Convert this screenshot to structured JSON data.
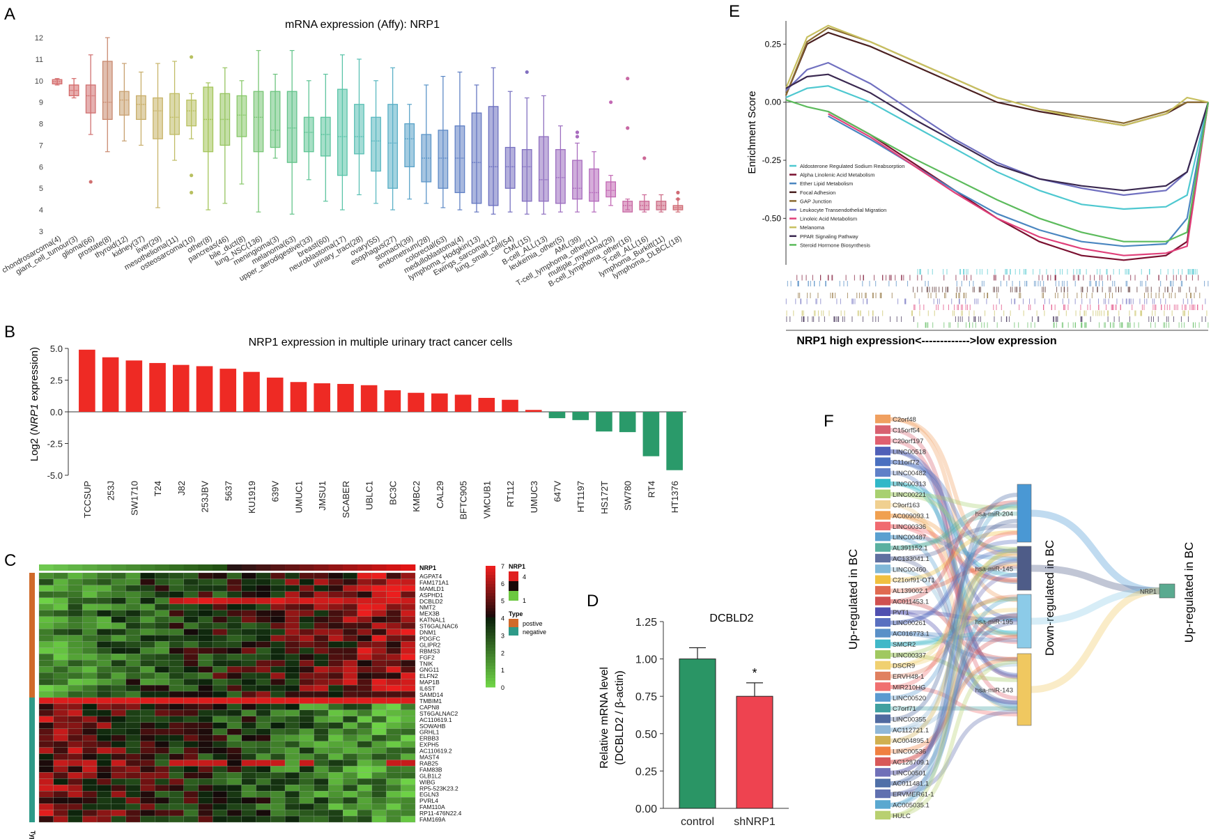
{
  "panel_letters": [
    "A",
    "B",
    "C",
    "D",
    "E",
    "F"
  ],
  "chart_data": [
    {
      "id": "A",
      "type": "box",
      "title": "mRNA expression (Affy): NRP1",
      "ylim": [
        3,
        12
      ],
      "yticks": [
        3,
        4,
        5,
        6,
        7,
        8,
        9,
        10,
        11,
        12
      ],
      "categories": [
        "chondrosarcoma(4)",
        "giant_cell_tumour(3)",
        "glioma(66)",
        "prostate(8)",
        "thyroid(12)",
        "kidney(37)",
        "liver(29)",
        "mesothelioma(11)",
        "osteosarcoma(10)",
        "other(8)",
        "pancreas(46)",
        "bile_duct(8)",
        "lung_NSC(136)",
        "meningioma(3)",
        "melanoma(63)",
        "upper_aerodigestive(33)",
        "breast(60)",
        "neuroblastoma(17)",
        "urinary_tract(28)",
        "ovary(55)",
        "esophagus(27)",
        "stomach(39)",
        "endometrium(28)",
        "colorectal(63)",
        "medulloblastoma(4)",
        "lymphoma_Hodgkin(13)",
        "Ewings_sarcoma(12)",
        "lung_small_cell(54)",
        "CML(15)",
        "B-cell_ALL(13)",
        "leukemia_other(5)",
        "AML(39)",
        "T-cell_lymphoma_other(11)",
        "multiple_myeloma(29)",
        "B-cell_lymphoma_other(16)",
        "T-cell_ALL(16)",
        "lymphoma_Burkitt(11)",
        "lymphoma_DLBCL(18)"
      ],
      "boxes": [
        [
          9.8,
          9.85,
          9.95,
          10.05,
          10.1
        ],
        [
          9.2,
          9.3,
          9.55,
          9.8,
          10.1
        ],
        [
          7.5,
          8.5,
          9.3,
          9.8,
          11.2
        ],
        [
          6.7,
          8.2,
          9.0,
          10.9,
          12.0
        ],
        [
          7.2,
          8.4,
          9.1,
          9.5,
          10.8
        ],
        [
          7.0,
          8.2,
          8.9,
          9.3,
          10.4
        ],
        [
          4.1,
          7.3,
          8.6,
          9.2,
          10.8
        ],
        [
          6.3,
          7.5,
          8.3,
          9.4,
          10.9
        ],
        [
          7.3,
          7.9,
          8.6,
          9.1,
          9.4
        ],
        [
          4.0,
          6.7,
          8.2,
          9.7,
          9.9
        ],
        [
          4.3,
          7.0,
          8.2,
          9.4,
          10.6
        ],
        [
          5.2,
          7.4,
          8.4,
          9.3,
          10.0
        ],
        [
          3.9,
          6.7,
          8.3,
          9.5,
          11.4
        ],
        [
          6.4,
          6.9,
          7.7,
          9.5,
          10.3
        ],
        [
          3.8,
          6.2,
          7.8,
          9.5,
          11.4
        ],
        [
          5.4,
          6.7,
          7.6,
          8.3,
          10.0
        ],
        [
          4.4,
          6.5,
          7.5,
          8.3,
          10.3
        ],
        [
          4.0,
          5.6,
          7.4,
          9.6,
          11.2
        ],
        [
          4.7,
          6.6,
          7.4,
          8.9,
          11.0
        ],
        [
          4.3,
          5.8,
          7.2,
          8.3,
          10.0
        ],
        [
          4.0,
          5.0,
          7.1,
          8.9,
          10.6
        ],
        [
          4.5,
          6.0,
          7.3,
          8.0,
          8.9
        ],
        [
          4.3,
          5.3,
          6.4,
          7.5,
          9.8
        ],
        [
          4.1,
          5.0,
          6.4,
          7.7,
          10.2
        ],
        [
          4.0,
          4.8,
          6.4,
          7.9,
          10.4
        ],
        [
          3.9,
          4.3,
          6.2,
          8.5,
          9.8
        ],
        [
          3.8,
          4.2,
          6.0,
          8.8,
          10.6
        ],
        [
          3.9,
          5.0,
          6.0,
          6.9,
          9.5
        ],
        [
          3.8,
          4.4,
          6.0,
          6.8,
          9.2
        ],
        [
          3.8,
          4.4,
          5.4,
          7.4,
          9.3
        ],
        [
          3.9,
          4.3,
          5.5,
          6.8,
          7.9
        ],
        [
          3.9,
          4.5,
          5.0,
          6.3,
          7.1
        ],
        [
          3.9,
          4.4,
          4.8,
          5.9,
          6.7
        ],
        [
          4.2,
          4.6,
          4.9,
          5.3,
          5.6
        ],
        [
          4.0,
          3.9,
          4.2,
          4.4,
          4.5
        ],
        [
          3.9,
          4.0,
          4.2,
          4.4,
          4.7
        ],
        [
          3.9,
          4.0,
          4.2,
          4.4,
          4.7
        ],
        [
          3.9,
          4.0,
          4.1,
          4.2,
          4.5
        ]
      ],
      "outliers": [
        [
          2,
          5.3
        ],
        [
          8,
          11.1
        ],
        [
          8,
          5.6
        ],
        [
          8,
          4.8
        ],
        [
          28,
          10.4
        ],
        [
          31,
          7.6
        ],
        [
          31,
          7.4
        ],
        [
          33,
          9.0
        ],
        [
          34,
          10.1
        ],
        [
          34,
          7.8
        ],
        [
          35,
          6.4
        ],
        [
          37,
          4.8
        ],
        [
          37,
          4.5
        ]
      ],
      "group_colors": [
        "#d46a6a",
        "#d46a6a",
        "#d07070",
        "#c98a70",
        "#c8a070",
        "#c8ae6a",
        "#c8b46a",
        "#c0bc66",
        "#b8c060",
        "#a4c55a",
        "#96c460",
        "#88c86a",
        "#78c574",
        "#6cc47e",
        "#62c38a",
        "#5ec494",
        "#5cc49e",
        "#5ac4a8",
        "#5ac0b4",
        "#5ab8c0",
        "#5aafc6",
        "#5aa3c8",
        "#5c96c8",
        "#5e8ac6",
        "#6080c4",
        "#6678c2",
        "#6c70c0",
        "#7670c0",
        "#8270c0",
        "#9070c0",
        "#9c6ec0",
        "#a86cbe",
        "#b46abc",
        "#c268b4",
        "#c868a4",
        "#cc6896",
        "#cc6a84",
        "#d06a74"
      ]
    },
    {
      "id": "B",
      "type": "bar",
      "title": "NRP1 expression in multiple urinary tract cancer cells",
      "ylabel_prefix": "Log2 (",
      "ylabel_italic": "NRP1",
      "ylabel_suffix": " expression)",
      "ylim": [
        -5.0,
        5.0
      ],
      "yticks": [
        5.0,
        2.5,
        0.0,
        -2.5,
        -5.0
      ],
      "ytick_labels": [
        "5.0",
        "2.5",
        "0.0",
        "-2.5",
        "-5.0"
      ],
      "categories": [
        "TCCSUP",
        "253J",
        "SW1710",
        "T24",
        "J82",
        "253JBV",
        "5637",
        "KU1919",
        "639V",
        "UMUC1",
        "JMSU1",
        "SCABER",
        "UBLC1",
        "BC3C",
        "KMBC2",
        "CAL29",
        "BFTC905",
        "VMCUB1",
        "RT112",
        "UMUC3",
        "647V",
        "HT1197",
        "HS172T",
        "SW780",
        "RT4",
        "HT1376"
      ],
      "values": [
        4.9,
        4.3,
        4.05,
        3.85,
        3.7,
        3.6,
        3.4,
        3.15,
        2.7,
        2.35,
        2.25,
        2.2,
        2.1,
        1.7,
        1.5,
        1.45,
        1.35,
        1.1,
        0.95,
        0.15,
        -0.5,
        -0.65,
        -1.55,
        -1.6,
        -3.5,
        -4.6
      ],
      "positive_color": "#ee2a24",
      "negative_color": "#2a9a6a"
    },
    {
      "id": "C",
      "type": "heatmap",
      "top_row_label": "NRP1",
      "rows": [
        "AGPAT4",
        "FAM171A1",
        "MAMLD1",
        "ASPHD1",
        "DCBLD2",
        "NMT2",
        "MEX3B",
        "KATNAL1",
        "ST6GALNAC6",
        "DNM1",
        "PDGFC",
        "GLIPR2",
        "RBMS3",
        "FGF2",
        "TNIK",
        "GNG11",
        "ELFN2",
        "MAP1B",
        "IL6ST",
        "SAMD14",
        "TMBIM1",
        "CAPN8",
        "ST6GALNAC2",
        "AC110619.1",
        "SOWAHB",
        "GRHL1",
        "ERBB3",
        "EXPH5",
        "AC110619.2",
        "MAST4",
        "RAB25",
        "FAM83B",
        "GLB1L2",
        "WIBG",
        "RP5-523K23.2",
        "EGLN3",
        "PVRL4",
        "FAM110A",
        "RP11-476N22.4",
        "FAM169A"
      ],
      "positive_rows": 20,
      "n_cols": 26,
      "legend_title": "NRP1",
      "legend_nrp1_ticks": [
        "4",
        "1"
      ],
      "legend_scale_ticks": [
        "7",
        "6",
        "5",
        "4",
        "3",
        "2",
        "1",
        "0"
      ],
      "legend_type_title": "Type",
      "legend_type_labels": [
        "postive",
        "negative"
      ],
      "type_axis_label": "Type",
      "type_colors": {
        "positive": "#d06a2a",
        "negative": "#2e9a88"
      }
    },
    {
      "id": "D",
      "type": "bar",
      "title": "DCBLD2",
      "ylabel_line1": "Relative mRNA level",
      "ylabel_line2": "(DCBLD2 / β-actin)",
      "ylim": [
        0.0,
        1.25
      ],
      "yticks": [
        0.0,
        0.25,
        0.5,
        0.75,
        1.0,
        1.25
      ],
      "ytick_labels": [
        "0.00",
        "0.25",
        "0.50",
        "0.75",
        "1.00",
        "1.25"
      ],
      "categories": [
        "control",
        "shNRP1"
      ],
      "values": [
        1.0,
        0.75
      ],
      "errors": [
        0.075,
        0.09
      ],
      "colors": [
        "#2a9565",
        "#ee4350"
      ],
      "annotation": "*"
    },
    {
      "id": "E",
      "type": "line",
      "ylabel": "Enrichment Score",
      "xlabel": "NRP1 high expression<------------->low expression",
      "ylim": [
        -0.7,
        0.35
      ],
      "yticks": [
        0.25,
        0.0,
        -0.25,
        -0.5
      ],
      "ytick_labels": [
        "0.25",
        "0.00",
        "-0.25",
        "-0.50"
      ],
      "x": [
        0,
        5,
        10,
        20,
        30,
        40,
        50,
        60,
        70,
        80,
        90,
        95,
        100
      ],
      "series": [
        {
          "name": "Aldosterone Regulated Sodium Reabsorption",
          "color": "#4ec8d0",
          "values": [
            0.02,
            0.06,
            0.07,
            0.0,
            -0.1,
            -0.2,
            -0.3,
            -0.38,
            -0.44,
            -0.46,
            -0.45,
            -0.4,
            0.0
          ]
        },
        {
          "name": "Alpha Linolenic Acid Metabolism",
          "color": "#7a1030",
          "values": [
            null,
            null,
            -0.04,
            -0.14,
            -0.26,
            -0.38,
            -0.5,
            -0.6,
            -0.66,
            -0.68,
            -0.66,
            -0.6,
            0.0
          ]
        },
        {
          "name": "Ether Lipid Metabolism",
          "color": "#4a86c0",
          "values": [
            null,
            null,
            -0.06,
            -0.16,
            -0.27,
            -0.38,
            -0.48,
            -0.55,
            -0.6,
            -0.62,
            -0.61,
            -0.5,
            0.0
          ]
        },
        {
          "name": "Focal Adhesion",
          "color": "#4a2020",
          "values": [
            0.03,
            0.25,
            0.3,
            0.24,
            0.16,
            0.08,
            0.0,
            -0.04,
            -0.07,
            -0.1,
            -0.05,
            0.0,
            0.0
          ]
        },
        {
          "name": "GAP Junction",
          "color": "#8a6a30",
          "values": [
            0.03,
            0.26,
            0.32,
            0.26,
            0.18,
            0.1,
            0.02,
            -0.03,
            -0.06,
            -0.09,
            -0.04,
            0.0,
            0.0
          ]
        },
        {
          "name": "Leukocyte Transendothelial Migration",
          "color": "#7070c0",
          "values": [
            0.05,
            0.14,
            0.17,
            0.08,
            -0.04,
            -0.16,
            -0.26,
            -0.33,
            -0.37,
            -0.4,
            -0.38,
            -0.3,
            0.0
          ]
        },
        {
          "name": "Linoleic Acid Metabolism",
          "color": "#e0407a",
          "values": [
            null,
            null,
            -0.05,
            -0.15,
            -0.27,
            -0.39,
            -0.5,
            -0.58,
            -0.63,
            -0.66,
            -0.65,
            -0.62,
            0.0
          ]
        },
        {
          "name": "Melanoma",
          "color": "#c8c060",
          "values": [
            0.06,
            0.28,
            0.33,
            0.26,
            0.18,
            0.1,
            0.02,
            -0.03,
            -0.07,
            -0.1,
            -0.05,
            0.02,
            0.0
          ]
        },
        {
          "name": "PPAR Signaling Pathway",
          "color": "#3a2850",
          "values": [
            0.06,
            0.11,
            0.12,
            0.04,
            -0.07,
            -0.17,
            -0.27,
            -0.33,
            -0.36,
            -0.38,
            -0.36,
            -0.3,
            0.0
          ]
        },
        {
          "name": "Steroid Hormone Biosynthesis",
          "color": "#5cbb5c",
          "values": [
            0.01,
            -0.02,
            -0.04,
            -0.14,
            -0.24,
            -0.33,
            -0.42,
            -0.5,
            -0.56,
            -0.6,
            -0.6,
            -0.56,
            0.0
          ]
        }
      ]
    },
    {
      "id": "F",
      "type": "sankey",
      "left_label": "Up-regulated in BC",
      "middle_label": "Down-regulated in BC",
      "right_label": "Up-regulated in BC",
      "lncrnas": [
        "C2orf48",
        "C15orf54",
        "C20orf197",
        "LINC00518",
        "C11orf72",
        "LINC00482",
        "LINC00313",
        "LINC00221",
        "C9orf163",
        "AC009093.1",
        "LINC00336",
        "LINC00487",
        "AL391152.1",
        "AC133041.1",
        "LINC00460",
        "C21orf91-OT1",
        "AL139002.1",
        "AC011453.1",
        "PVT1",
        "LINC00261",
        "AC016773.1",
        "SMCR2",
        "LINC00337",
        "DSCR9",
        "ERVH48-1",
        "MIR210HG",
        "LINC00520",
        "C7orf71",
        "LINC00355",
        "AC112721.1",
        "AC004895.1",
        "LINC00536",
        "AC128709.1",
        "LINC00501",
        "AC011481.1",
        "ERVMER61-1",
        "AC005035.1",
        "HULC"
      ],
      "lnc_colors": [
        "#f0a060",
        "#d86070",
        "#e06070",
        "#5060b8",
        "#4a70c0",
        "#6080c8",
        "#30b8c8",
        "#a8d070",
        "#f0d090",
        "#f0a050",
        "#f06a70",
        "#5aa0d0",
        "#5ab0a0",
        "#6070a0",
        "#80b8d8",
        "#f0c040",
        "#e06a50",
        "#d05050",
        "#5050b0",
        "#5a70c0",
        "#5a90c8",
        "#40b8c8",
        "#a0c860",
        "#f0d070",
        "#e08060",
        "#f07070",
        "#5a9ad0",
        "#40a0a0",
        "#506aa0",
        "#90b8d8",
        "#d0b050",
        "#f08040",
        "#d85858",
        "#7070b8",
        "#5070a8",
        "#6070b0",
        "#5aa8d0",
        "#b8d070"
      ],
      "mirnas": [
        "hsa-miR-204",
        "hsa-miR-145",
        "hsa-miR-195",
        "hsa-miR-143"
      ],
      "mirna_colors": [
        "#4a98d4",
        "#4e5c88",
        "#8ccbe8",
        "#f0c860"
      ],
      "target": "NRP1",
      "target_color": "#5aaa90"
    }
  ]
}
